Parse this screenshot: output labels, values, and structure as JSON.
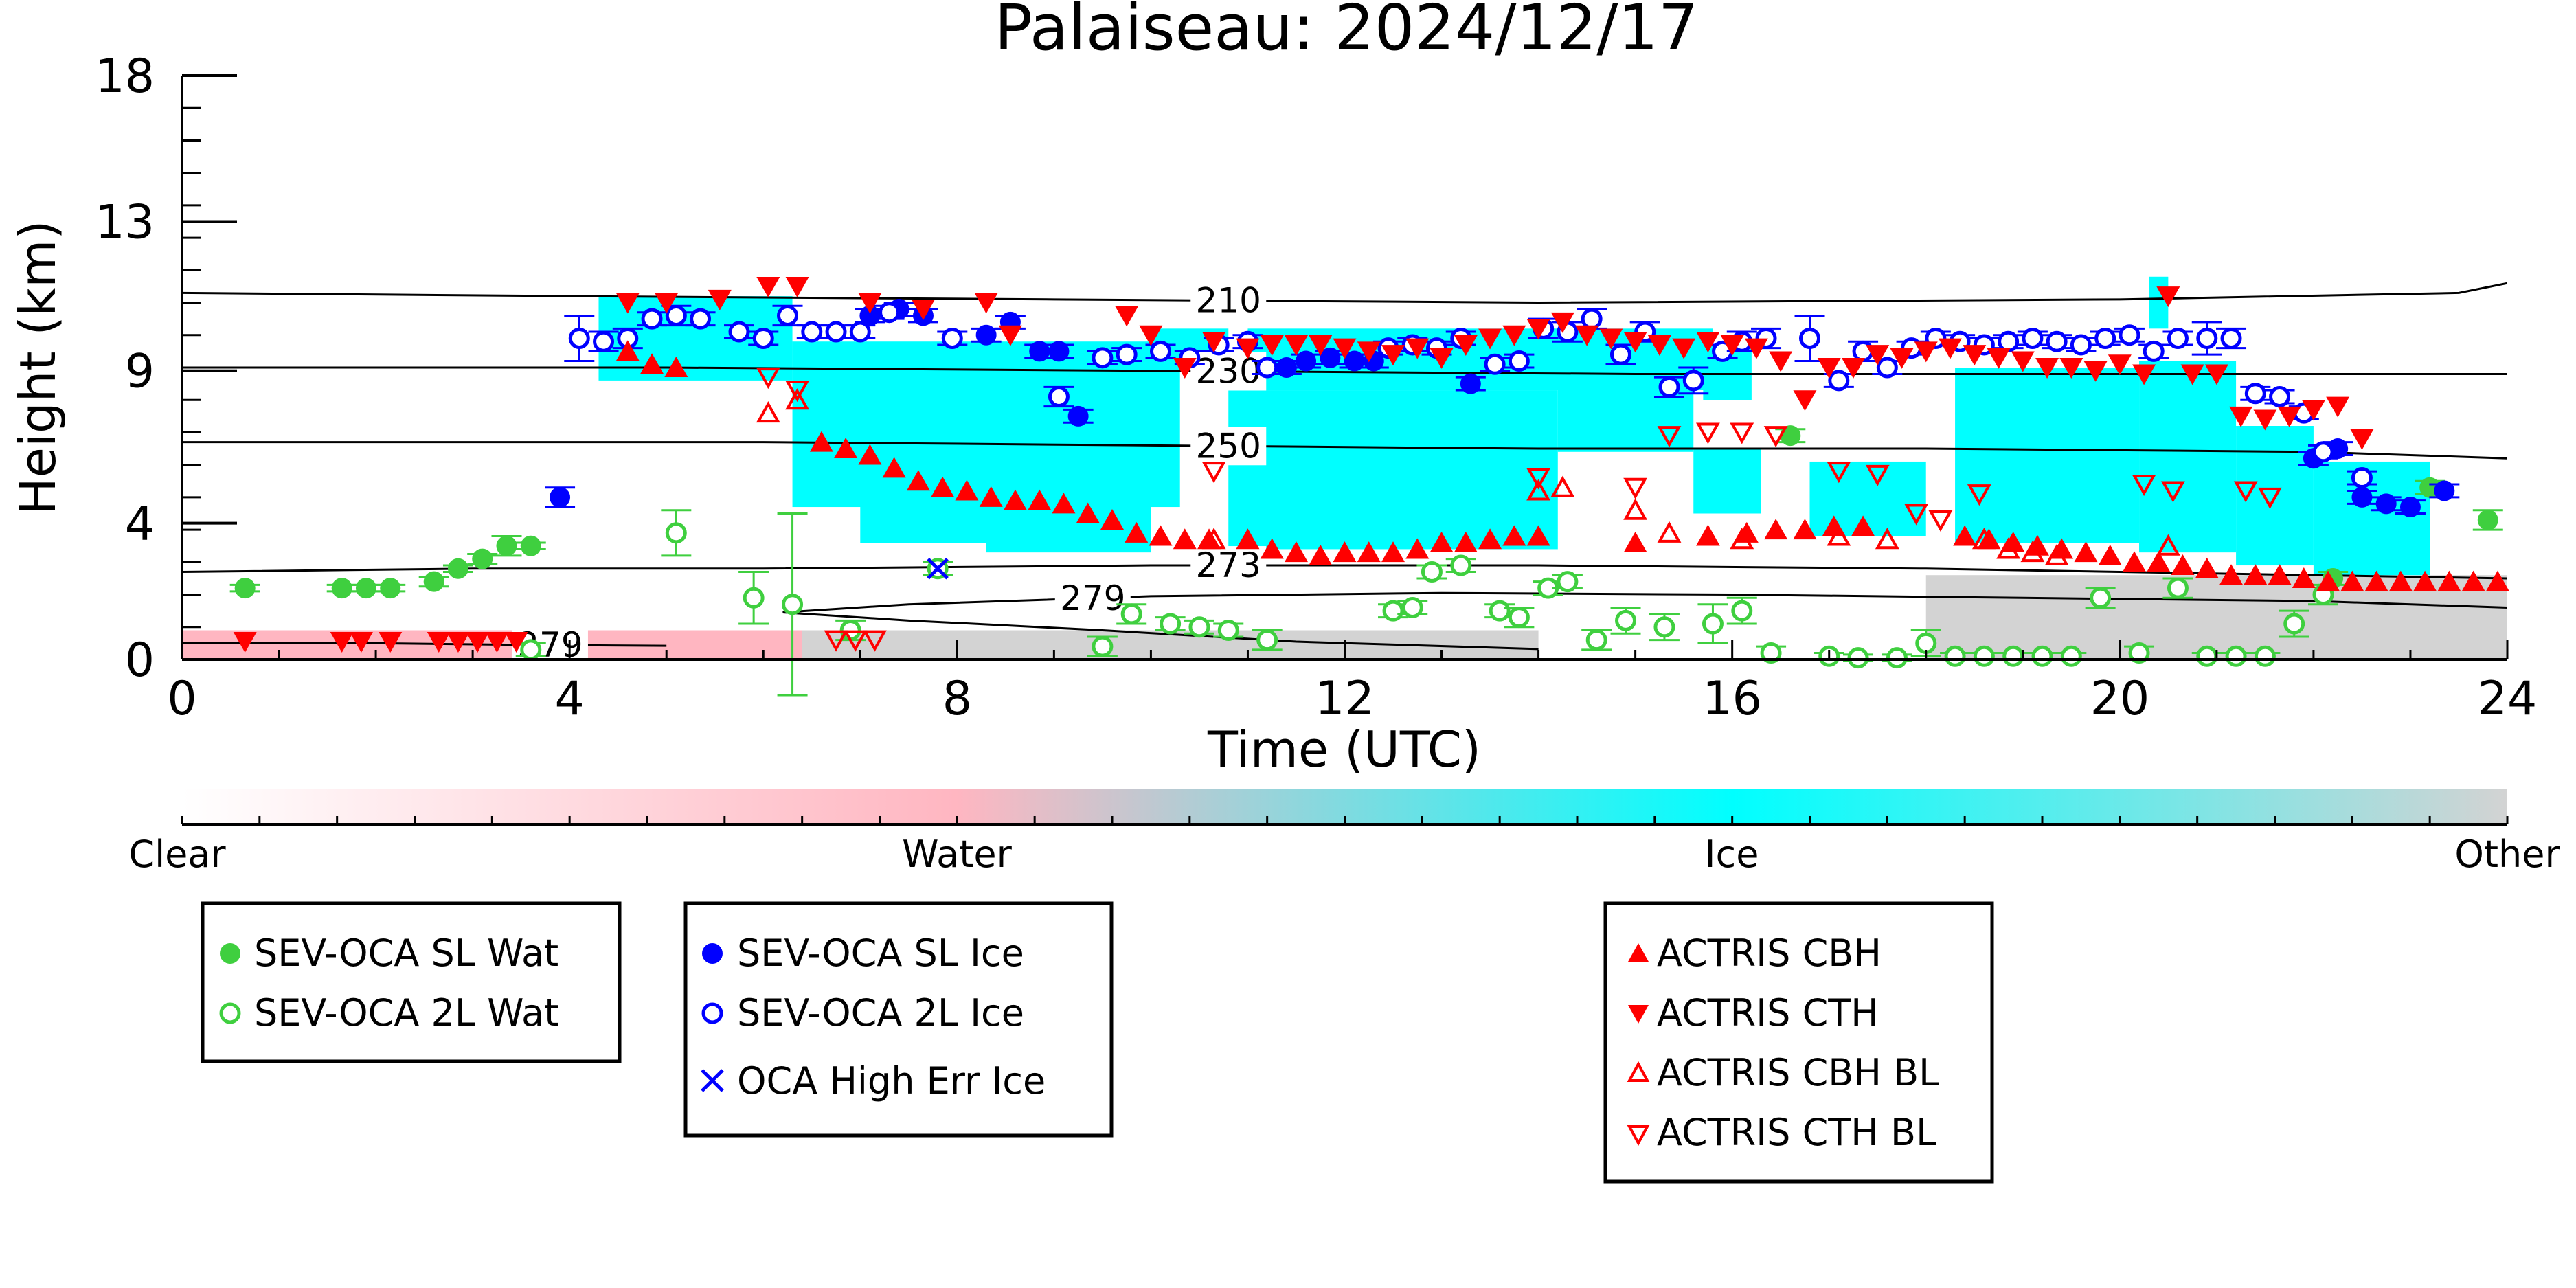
{
  "chart_data": {
    "type": "scatter",
    "title": "Palaiseau: 2024/12/17",
    "xlabel": "Time (UTC)",
    "ylabel": "Height (km)",
    "xlim": [
      0,
      24
    ],
    "ylim": [
      0,
      18
    ],
    "xticks": [
      "0",
      "4",
      "8",
      "12",
      "16",
      "20",
      "24"
    ],
    "yticks": [
      "0",
      "4",
      "9",
      "13",
      "18"
    ],
    "grid": false,
    "colorbar": {
      "labels": [
        "Clear",
        "Water",
        "Ice",
        "Other"
      ],
      "colors": [
        "#ffffff",
        "#ffb6c1",
        "#00ffff",
        "#d3d3d3"
      ]
    },
    "contours": [
      {
        "label": "210",
        "points": [
          [
            0,
            11.3
          ],
          [
            4,
            11.2
          ],
          [
            9,
            11.1
          ],
          [
            14,
            11.0
          ],
          [
            20,
            11.1
          ],
          [
            23.5,
            11.3
          ],
          [
            24,
            11.6
          ]
        ]
      },
      {
        "label": "230",
        "points": [
          [
            0,
            9.0
          ],
          [
            5,
            9.0
          ],
          [
            10,
            8.9
          ],
          [
            15,
            8.8
          ],
          [
            20,
            8.8
          ],
          [
            24,
            8.8
          ]
        ]
      },
      {
        "label": "250",
        "points": [
          [
            0,
            6.7
          ],
          [
            6,
            6.7
          ],
          [
            10,
            6.6
          ],
          [
            14,
            6.5
          ],
          [
            18,
            6.5
          ],
          [
            22,
            6.4
          ],
          [
            24,
            6.2
          ]
        ]
      },
      {
        "label": "273",
        "points": [
          [
            0,
            2.7
          ],
          [
            3,
            2.8
          ],
          [
            6,
            2.8
          ],
          [
            10,
            2.9
          ],
          [
            14,
            2.9
          ],
          [
            18,
            2.8
          ],
          [
            22,
            2.6
          ],
          [
            24,
            2.5
          ]
        ]
      },
      {
        "label": "279",
        "points": [
          [
            6.2,
            1.45
          ],
          [
            7.5,
            1.7
          ],
          [
            10,
            1.95
          ],
          [
            13,
            2.05
          ],
          [
            16,
            2.0
          ],
          [
            19,
            1.9
          ],
          [
            22,
            1.8
          ],
          [
            24,
            1.6
          ]
        ]
      },
      {
        "label": "279",
        "points": [
          [
            6.2,
            1.45
          ],
          [
            7.5,
            1.2
          ],
          [
            9.5,
            0.9
          ],
          [
            11.5,
            0.55
          ],
          [
            14,
            0.32
          ]
        ]
      },
      {
        "label": "279",
        "points": [
          [
            0,
            0.5
          ],
          [
            2,
            0.5
          ],
          [
            3.5,
            0.45
          ],
          [
            5,
            0.42
          ]
        ]
      }
    ],
    "background_masks": [
      {
        "class": "Water",
        "color": "#ffb6c1",
        "ranges": [
          [
            0,
            6.4,
            0,
            0.9
          ]
        ]
      },
      {
        "class": "Other",
        "color": "#d3d3d3",
        "ranges": [
          [
            6.4,
            14,
            0,
            0.9
          ],
          [
            18,
            24,
            0,
            2.6
          ]
        ]
      },
      {
        "class": "Ice",
        "color": "#00ffff",
        "ranges": [
          [
            4.3,
            6.3,
            8.6,
            11.2
          ],
          [
            6.3,
            10.3,
            4.7,
            9.8
          ],
          [
            7.0,
            9.8,
            3.6,
            8.0
          ],
          [
            8.3,
            10.0,
            3.3,
            6.0
          ],
          [
            10.0,
            10.8,
            9.0,
            10.2
          ],
          [
            10.8,
            14.2,
            3.4,
            8.3
          ],
          [
            11.0,
            15.8,
            8.3,
            10.2
          ],
          [
            14.2,
            15.6,
            6.4,
            9.7
          ],
          [
            15.6,
            16.3,
            4.5,
            6.5
          ],
          [
            15.7,
            16.2,
            8.0,
            9.6
          ],
          [
            16.8,
            18.0,
            3.8,
            6.1
          ],
          [
            18.3,
            20.2,
            3.6,
            9.0
          ],
          [
            20.2,
            21.2,
            3.3,
            9.2
          ],
          [
            20.3,
            20.5,
            10.2,
            11.8
          ],
          [
            21.2,
            22.0,
            2.9,
            7.2
          ],
          [
            22.0,
            23.2,
            2.6,
            6.1
          ]
        ]
      }
    ],
    "series": [
      {
        "name": "SEV-OCA SL Wat",
        "color": "#3fcf3f",
        "marker": "filled-circle",
        "x": [
          0.65,
          1.65,
          1.9,
          2.15,
          2.6,
          2.85,
          3.1,
          3.35,
          3.6,
          16.6,
          22.2,
          23.2,
          23.8
        ],
        "y": [
          2.2,
          2.2,
          2.2,
          2.2,
          2.4,
          2.8,
          3.1,
          3.5,
          3.5,
          6.9,
          2.5,
          5.3,
          4.3
        ],
        "yerr": [
          0.1,
          0.1,
          0.1,
          0.1,
          0.15,
          0.1,
          0.15,
          0.3,
          0.1,
          0.2,
          0.2,
          0.2,
          0.3
        ]
      },
      {
        "name": "SEV-OCA 2L Wat",
        "color": "#3fcf3f",
        "marker": "open-circle",
        "x": [
          3.6,
          5.1,
          5.9,
          6.3,
          6.9,
          7.8,
          9.5,
          9.8,
          10.2,
          10.5,
          10.8,
          11.2,
          12.5,
          12.7,
          12.9,
          13.2,
          13.6,
          13.8,
          14.1,
          14.3,
          14.6,
          14.9,
          15.3,
          15.8,
          16.1,
          16.4,
          17.0,
          17.3,
          17.7,
          18.0,
          18.3,
          18.6,
          18.9,
          19.2,
          19.5,
          19.8,
          20.2,
          20.6,
          20.9,
          21.2,
          21.5,
          21.8,
          22.1
        ],
        "y": [
          0.3,
          3.9,
          1.9,
          1.7,
          0.9,
          2.8,
          0.4,
          1.4,
          1.1,
          1.0,
          0.9,
          0.6,
          1.5,
          1.6,
          2.7,
          2.9,
          1.5,
          1.3,
          2.2,
          2.4,
          0.6,
          1.2,
          1.0,
          1.1,
          1.5,
          0.2,
          0.1,
          0.05,
          0.05,
          0.5,
          0.1,
          0.1,
          0.1,
          0.1,
          0.1,
          1.9,
          0.2,
          2.2,
          0.1,
          0.1,
          0.1,
          1.1,
          2.0
        ],
        "yerr": [
          0.2,
          0.7,
          0.8,
          2.8,
          0.3,
          0.2,
          0.3,
          0.3,
          0.2,
          0.2,
          0.2,
          0.3,
          0.2,
          0.2,
          0.2,
          0.2,
          0.2,
          0.3,
          0.2,
          0.2,
          0.3,
          0.4,
          0.4,
          0.6,
          0.4,
          0.2,
          0.1,
          0.1,
          0.1,
          0.4,
          0.1,
          0.1,
          0.1,
          0.1,
          0.1,
          0.3,
          0.2,
          0.3,
          0.1,
          0.1,
          0.1,
          0.4,
          0.3
        ]
      },
      {
        "name": "SEV-OCA SL Ice",
        "color": "#0000ff",
        "marker": "filled-circle",
        "x": [
          3.9,
          7.1,
          7.4,
          7.65,
          8.3,
          8.55,
          8.85,
          9.05,
          9.25,
          11.4,
          11.6,
          11.85,
          12.1,
          12.3,
          13.3,
          22.0,
          22.25,
          22.5,
          22.75,
          23.0,
          23.35
        ],
        "y": [
          5.0,
          10.6,
          10.8,
          10.6,
          10.0,
          10.4,
          9.5,
          9.5,
          7.5,
          9.0,
          9.2,
          9.3,
          9.2,
          9.2,
          8.5,
          6.2,
          6.5,
          5.0,
          4.8,
          4.7,
          5.2
        ],
        "yerr": [
          0.3,
          0.2,
          0.2,
          0.2,
          0.2,
          0.2,
          0.2,
          0.2,
          0.2,
          0.2,
          0.2,
          0.2,
          0.2,
          0.2,
          0.2,
          0.2,
          0.2,
          0.2,
          0.2,
          0.2,
          0.2
        ]
      },
      {
        "name": "SEV-OCA 2L Ice",
        "color": "#0000ff",
        "marker": "open-circle",
        "x": [
          4.1,
          4.35,
          4.6,
          4.85,
          5.1,
          5.35,
          5.75,
          6.0,
          6.25,
          6.5,
          6.75,
          7.0,
          7.3,
          7.95,
          9.05,
          9.5,
          9.75,
          10.1,
          10.4,
          10.7,
          11.0,
          11.2,
          12.45,
          12.7,
          12.95,
          13.2,
          13.55,
          13.8,
          14.05,
          14.3,
          14.55,
          14.85,
          15.1,
          15.35,
          15.6,
          15.9,
          16.1,
          16.35,
          16.8,
          17.1,
          17.35,
          17.6,
          17.85,
          18.1,
          18.35,
          18.6,
          18.85,
          19.1,
          19.35,
          19.6,
          19.85,
          20.1,
          20.35,
          20.6,
          20.9,
          21.15,
          21.4,
          21.65,
          21.9,
          22.1,
          22.5
        ],
        "y": [
          9.9,
          9.8,
          9.9,
          10.5,
          10.6,
          10.5,
          10.1,
          9.9,
          10.6,
          10.1,
          10.1,
          10.1,
          10.7,
          9.9,
          8.1,
          9.3,
          9.4,
          9.5,
          9.3,
          9.7,
          9.8,
          9.0,
          9.6,
          9.7,
          9.6,
          9.9,
          9.1,
          9.2,
          10.2,
          10.1,
          10.5,
          9.4,
          10.1,
          8.4,
          8.6,
          9.5,
          9.8,
          9.9,
          9.9,
          8.6,
          9.5,
          9.0,
          9.6,
          9.9,
          9.8,
          9.7,
          9.8,
          9.9,
          9.8,
          9.7,
          9.9,
          10.0,
          9.5,
          9.9,
          9.9,
          9.9,
          8.2,
          8.1,
          7.6,
          6.4,
          5.6
        ],
        "yerr": [
          0.7,
          0.3,
          0.3,
          0.2,
          0.3,
          0.2,
          0.2,
          0.2,
          0.3,
          0.2,
          0.2,
          0.2,
          0.2,
          0.2,
          0.3,
          0.2,
          0.2,
          0.2,
          0.2,
          0.2,
          0.2,
          0.2,
          0.2,
          0.2,
          0.2,
          0.2,
          0.2,
          0.2,
          0.3,
          0.3,
          0.3,
          0.3,
          0.3,
          0.3,
          0.4,
          0.2,
          0.3,
          0.3,
          0.7,
          0.2,
          0.3,
          0.2,
          0.2,
          0.2,
          0.2,
          0.2,
          0.2,
          0.2,
          0.2,
          0.2,
          0.2,
          0.2,
          0.2,
          0.2,
          0.5,
          0.3,
          0.2,
          0.2,
          0.2,
          0.2,
          0.2
        ]
      },
      {
        "name": "OCA High Err Ice",
        "color": "#0000ff",
        "marker": "x",
        "x": [
          7.8
        ],
        "y": [
          2.8
        ],
        "yerr": [
          0
        ]
      },
      {
        "name": "ACTRIS CBH",
        "color": "#ff0000",
        "marker": "triangle-up",
        "x": [
          4.6,
          4.85,
          5.1,
          6.6,
          6.85,
          7.1,
          7.35,
          7.6,
          7.85,
          8.1,
          8.35,
          8.6,
          8.85,
          9.1,
          9.35,
          9.6,
          9.85,
          10.1,
          10.35,
          10.6,
          11.0,
          11.25,
          11.5,
          11.75,
          12.0,
          12.25,
          12.5,
          12.75,
          13.0,
          13.25,
          13.5,
          13.75,
          14.0,
          15.0,
          15.75,
          16.15,
          16.45,
          16.75,
          17.05,
          17.35,
          18.4,
          18.65,
          18.9,
          19.15,
          19.4,
          19.65,
          19.9,
          20.15,
          20.4,
          20.65,
          20.9,
          21.15,
          21.4,
          21.65,
          21.9,
          22.15,
          22.4,
          22.65,
          22.9,
          23.15,
          23.4,
          23.65,
          23.9
        ],
        "y": [
          9.5,
          9.1,
          9.0,
          6.7,
          6.5,
          6.3,
          5.9,
          5.5,
          5.3,
          5.2,
          5.0,
          4.9,
          4.9,
          4.8,
          4.5,
          4.3,
          3.9,
          3.8,
          3.7,
          3.7,
          3.7,
          3.4,
          3.3,
          3.2,
          3.3,
          3.3,
          3.3,
          3.4,
          3.6,
          3.6,
          3.7,
          3.8,
          3.8,
          3.6,
          3.8,
          3.9,
          4.0,
          4.0,
          4.1,
          4.1,
          3.8,
          3.7,
          3.6,
          3.5,
          3.4,
          3.3,
          3.2,
          3.0,
          3.0,
          2.9,
          2.8,
          2.6,
          2.6,
          2.6,
          2.5,
          2.4,
          2.4,
          2.4,
          2.4,
          2.4,
          2.4,
          2.4,
          2.4
        ]
      },
      {
        "name": "ACTRIS CTH",
        "color": "#ff0000",
        "marker": "triangle-down",
        "x": [
          0.65,
          1.65,
          1.85,
          2.15,
          2.65,
          2.85,
          3.05,
          3.25,
          3.45,
          4.6,
          5.0,
          5.55,
          6.05,
          6.35,
          7.1,
          7.65,
          8.3,
          8.55,
          9.75,
          10.0,
          10.35,
          10.65,
          11.0,
          11.25,
          11.5,
          11.75,
          12.0,
          12.25,
          12.5,
          12.75,
          13.0,
          13.25,
          13.5,
          13.75,
          14.0,
          14.25,
          14.5,
          14.75,
          15.0,
          15.25,
          15.5,
          15.75,
          16.0,
          16.25,
          16.5,
          16.75,
          17.0,
          17.25,
          17.5,
          17.75,
          18.0,
          18.25,
          18.5,
          18.75,
          19.0,
          19.25,
          19.5,
          19.75,
          20.0,
          20.25,
          20.5,
          20.75,
          21.0,
          21.25,
          21.5,
          21.75,
          22.0,
          22.25,
          22.5
        ],
        "y": [
          0.55,
          0.55,
          0.55,
          0.55,
          0.55,
          0.55,
          0.55,
          0.55,
          0.55,
          11.0,
          11.0,
          11.1,
          11.5,
          11.5,
          11.0,
          10.8,
          11.0,
          10.0,
          10.6,
          10.0,
          9.0,
          9.8,
          9.6,
          9.7,
          9.7,
          9.7,
          9.6,
          9.5,
          9.4,
          9.6,
          9.3,
          9.7,
          9.9,
          10.0,
          10.2,
          10.4,
          10.0,
          9.9,
          9.8,
          9.7,
          9.6,
          9.8,
          9.7,
          9.6,
          9.2,
          8.0,
          9.0,
          9.0,
          9.4,
          9.3,
          9.5,
          9.6,
          9.4,
          9.3,
          9.2,
          9.0,
          9.0,
          8.9,
          9.1,
          8.8,
          11.2,
          8.8,
          8.8,
          7.5,
          7.4,
          7.5,
          7.7,
          7.8,
          6.8
        ]
      },
      {
        "name": "ACTRIS CBH BL",
        "color": "#ff0000",
        "marker": "open-triangle-up",
        "x": [
          6.05,
          6.35,
          10.65,
          14.0,
          14.25,
          15.0,
          15.35,
          15.75,
          16.1,
          17.1,
          17.6,
          18.6,
          18.85,
          19.1,
          19.35,
          20.5
        ],
        "y": [
          7.6,
          8.0,
          3.7,
          5.2,
          5.3,
          4.6,
          3.9,
          3.8,
          3.7,
          3.8,
          3.7,
          3.7,
          3.4,
          3.3,
          3.2,
          3.5
        ]
      },
      {
        "name": "ACTRIS CTH BL",
        "color": "#ff0000",
        "marker": "open-triangle-down",
        "x": [
          6.05,
          6.35,
          6.75,
          6.95,
          7.15,
          10.65,
          14.0,
          15.0,
          15.35,
          15.75,
          16.1,
          16.45,
          17.1,
          17.5,
          17.9,
          18.15,
          18.55,
          20.25,
          20.55,
          21.3,
          21.55
        ],
        "y": [
          8.7,
          8.3,
          0.6,
          0.6,
          0.6,
          5.8,
          5.6,
          5.3,
          6.9,
          7.0,
          7.0,
          6.9,
          5.8,
          5.7,
          4.5,
          4.3,
          5.1,
          5.4,
          5.2,
          5.2,
          5.0
        ]
      }
    ]
  },
  "legend_groups": [
    {
      "labels": [
        "SEV-OCA SL Wat",
        "SEV-OCA 2L Wat"
      ]
    },
    {
      "labels": [
        "SEV-OCA SL Ice",
        "SEV-OCA 2L Ice",
        "OCA High Err Ice"
      ]
    },
    {
      "labels": [
        "ACTRIS CBH",
        "ACTRIS CTH",
        "ACTRIS CBH BL",
        "ACTRIS CTH BL"
      ]
    }
  ]
}
